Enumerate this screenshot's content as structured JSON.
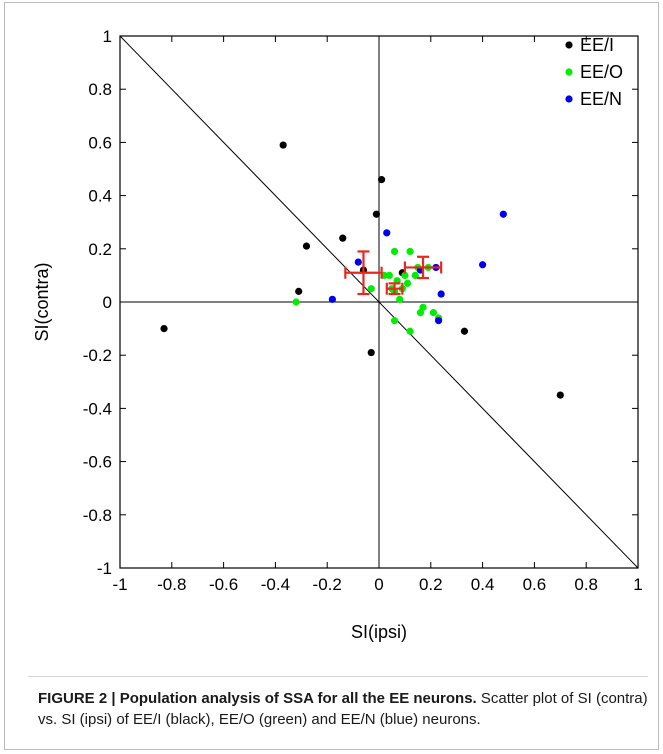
{
  "chart_data": {
    "type": "scatter",
    "xlabel": "SI(ipsi)",
    "ylabel": "SI(contra)",
    "xlim": [
      -1,
      1
    ],
    "ylim": [
      -1,
      1
    ],
    "x_ticks": [
      "-1",
      "-0.8",
      "-0.6",
      "-0.4",
      "-0.2",
      "0",
      "0.2",
      "0.4",
      "0.6",
      "0.8",
      "1"
    ],
    "y_ticks": [
      "1",
      "0.8",
      "0.6",
      "0.4",
      "0.2",
      "0",
      "-0.2",
      "-0.4",
      "-0.6",
      "-0.8",
      "-1"
    ],
    "grid": false,
    "legend_position": "top-right",
    "reference_lines": [
      "x=0",
      "y=0",
      "y=-x"
    ],
    "series": [
      {
        "name": "EE/I",
        "color": "#000000",
        "points": [
          [
            -0.83,
            -0.1
          ],
          [
            -0.37,
            0.59
          ],
          [
            -0.31,
            0.04
          ],
          [
            -0.28,
            0.21
          ],
          [
            -0.14,
            0.24
          ],
          [
            -0.06,
            0.12
          ],
          [
            -0.01,
            0.33
          ],
          [
            0.01,
            0.46
          ],
          [
            -0.03,
            -0.19
          ],
          [
            0.09,
            0.11
          ],
          [
            0.33,
            -0.11
          ],
          [
            0.7,
            -0.35
          ]
        ],
        "mean": [
          -0.06,
          0.11
        ],
        "sem": [
          0.07,
          0.08
        ]
      },
      {
        "name": "EE/O",
        "color": "#00ee00",
        "points": [
          [
            -0.32,
            0.0
          ],
          [
            -0.03,
            0.05
          ],
          [
            0.02,
            0.1
          ],
          [
            0.04,
            0.1
          ],
          [
            0.06,
            0.19
          ],
          [
            0.05,
            0.05
          ],
          [
            0.06,
            0.04
          ],
          [
            0.07,
            0.08
          ],
          [
            0.08,
            0.01
          ],
          [
            0.09,
            0.05
          ],
          [
            0.1,
            0.1
          ],
          [
            0.11,
            0.07
          ],
          [
            0.12,
            0.19
          ],
          [
            0.12,
            -0.11
          ],
          [
            0.14,
            0.1
          ],
          [
            0.15,
            0.13
          ],
          [
            0.16,
            -0.04
          ],
          [
            0.17,
            -0.02
          ],
          [
            0.19,
            0.13
          ],
          [
            0.21,
            -0.04
          ],
          [
            0.23,
            -0.06
          ],
          [
            0.06,
            -0.07
          ]
        ],
        "mean": [
          0.06,
          0.05
        ],
        "sem": [
          0.03,
          0.02
        ]
      },
      {
        "name": "EE/N",
        "color": "#0000ee",
        "points": [
          [
            -0.18,
            0.01
          ],
          [
            -0.08,
            0.15
          ],
          [
            0.03,
            0.26
          ],
          [
            0.16,
            0.12
          ],
          [
            0.22,
            0.13
          ],
          [
            0.23,
            -0.07
          ],
          [
            0.24,
            0.03
          ],
          [
            0.4,
            0.14
          ],
          [
            0.48,
            0.33
          ]
        ],
        "mean": [
          0.17,
          0.13
        ],
        "sem": [
          0.07,
          0.04
        ]
      }
    ]
  },
  "caption": {
    "title": "FIGURE 2 | Population analysis of SSA for all the EE neurons.",
    "text": " Scatter plot of SI (contra) vs. SI (ipsi) of EE/I (black), EE/O (green) and EE/N (blue) neurons."
  }
}
